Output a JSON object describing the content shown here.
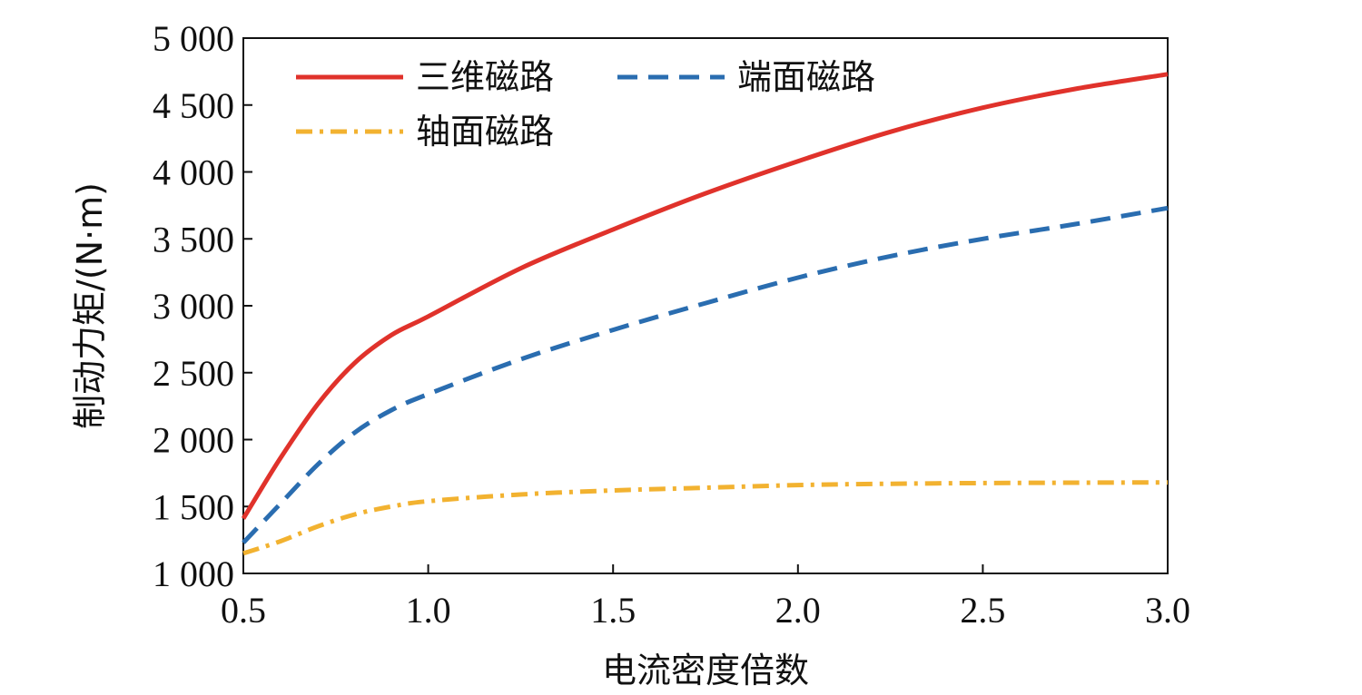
{
  "chart_data": {
    "type": "line",
    "title": "",
    "xlabel": "电流密度倍数",
    "ylabel": "制动力矩/(N·m)",
    "xlim": [
      0.5,
      3.0
    ],
    "ylim": [
      1000,
      5000
    ],
    "x_ticks": [
      0.5,
      1.0,
      1.5,
      2.0,
      2.5,
      3.0
    ],
    "x_tick_labels": [
      "0.5",
      "1.0",
      "1.5",
      "2.0",
      "2.5",
      "3.0"
    ],
    "y_ticks": [
      1000,
      1500,
      2000,
      2500,
      3000,
      3500,
      4000,
      4500,
      5000
    ],
    "y_tick_labels": [
      "1 000",
      "1 500",
      "2 000",
      "2 500",
      "3 000",
      "3 500",
      "4 000",
      "4 500",
      "5 000"
    ],
    "grid": false,
    "legend_position": "top-left",
    "series": [
      {
        "name": "三维磁路",
        "color": "#e0322b",
        "style": "solid",
        "x": [
          0.5,
          0.6,
          0.7,
          0.8,
          0.9,
          1.0,
          1.25,
          1.5,
          1.75,
          2.0,
          2.25,
          2.5,
          2.75,
          3.0
        ],
        "y": [
          1410,
          1860,
          2260,
          2570,
          2780,
          2920,
          3280,
          3570,
          3840,
          4080,
          4300,
          4480,
          4620,
          4730
        ]
      },
      {
        "name": "端面磁路",
        "color": "#2a6db0",
        "style": "dashed",
        "x": [
          0.5,
          0.6,
          0.7,
          0.8,
          0.9,
          1.0,
          1.25,
          1.5,
          1.75,
          2.0,
          2.25,
          2.5,
          2.75,
          3.0
        ],
        "y": [
          1230,
          1520,
          1810,
          2050,
          2220,
          2340,
          2600,
          2820,
          3020,
          3210,
          3370,
          3500,
          3610,
          3730
        ]
      },
      {
        "name": "轴面磁路",
        "color": "#f2b230",
        "style": "dashdot",
        "x": [
          0.5,
          0.6,
          0.7,
          0.8,
          0.9,
          1.0,
          1.25,
          1.5,
          1.75,
          2.0,
          2.25,
          2.5,
          2.75,
          3.0
        ],
        "y": [
          1150,
          1240,
          1350,
          1440,
          1500,
          1540,
          1590,
          1620,
          1640,
          1660,
          1670,
          1675,
          1678,
          1680
        ]
      }
    ]
  }
}
